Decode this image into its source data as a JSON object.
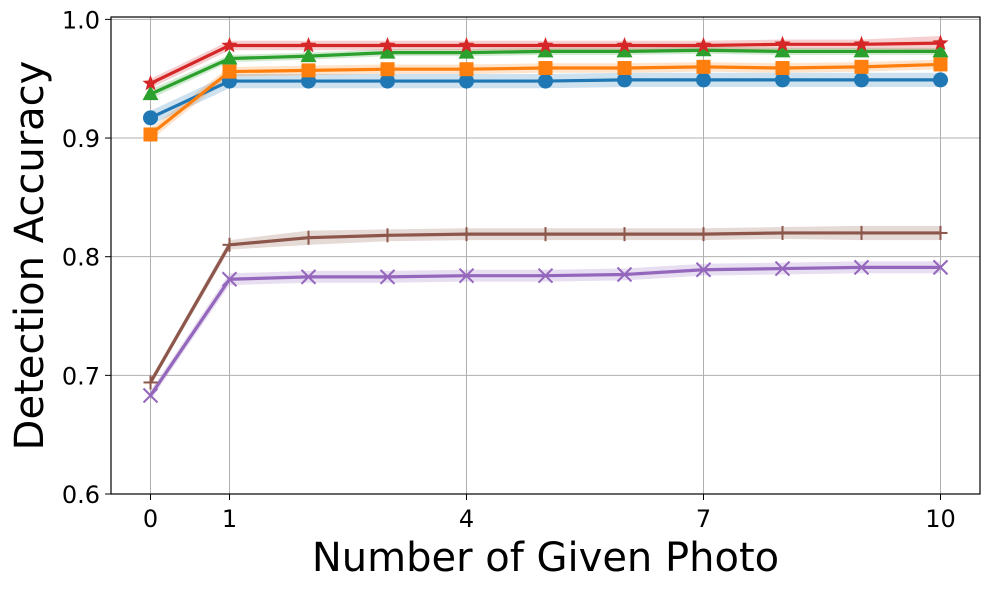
{
  "chart_data": {
    "type": "line",
    "title": "",
    "xlabel": "Number of Given Photo",
    "ylabel": "Detection Accuracy",
    "xlim": [
      -0.5,
      10.5
    ],
    "ylim": [
      0.6,
      1.002
    ],
    "xticks": [
      0,
      1,
      4,
      7,
      10
    ],
    "xtick_labels": [
      "0",
      "1",
      "4",
      "7",
      "10"
    ],
    "yticks": [
      0.6,
      0.7,
      0.8,
      0.9,
      1.0
    ],
    "ytick_labels": [
      "0.6",
      "0.7",
      "0.8",
      "0.9",
      "1.0"
    ],
    "grid": true,
    "x": [
      0,
      1,
      2,
      3,
      4,
      5,
      6,
      7,
      8,
      9,
      10
    ],
    "series": [
      {
        "color": "#1f77b4",
        "marker": "circle",
        "values": [
          0.917,
          0.948,
          0.948,
          0.948,
          0.948,
          0.948,
          0.949,
          0.949,
          0.949,
          0.949,
          0.949
        ],
        "band": [
          0.006,
          0.006,
          0.006,
          0.006,
          0.006,
          0.006,
          0.006,
          0.006,
          0.006,
          0.006,
          0.006
        ]
      },
      {
        "color": "#ff7f0e",
        "marker": "square",
        "values": [
          0.903,
          0.956,
          0.957,
          0.958,
          0.958,
          0.959,
          0.959,
          0.96,
          0.959,
          0.96,
          0.962
        ],
        "band": [
          0.005,
          0.004,
          0.004,
          0.004,
          0.004,
          0.004,
          0.004,
          0.004,
          0.004,
          0.004,
          0.004
        ]
      },
      {
        "color": "#2ca02c",
        "marker": "triangle",
        "values": [
          0.937,
          0.967,
          0.969,
          0.972,
          0.972,
          0.973,
          0.973,
          0.974,
          0.973,
          0.973,
          0.973
        ],
        "band": [
          0.004,
          0.003,
          0.003,
          0.003,
          0.003,
          0.003,
          0.003,
          0.003,
          0.003,
          0.003,
          0.003
        ]
      },
      {
        "color": "#d62728",
        "marker": "star",
        "values": [
          0.946,
          0.978,
          0.978,
          0.978,
          0.978,
          0.978,
          0.978,
          0.978,
          0.979,
          0.979,
          0.98
        ],
        "band": [
          0.004,
          0.004,
          0.004,
          0.004,
          0.004,
          0.004,
          0.004,
          0.004,
          0.004,
          0.004,
          0.006
        ]
      },
      {
        "color": "#9467bd",
        "marker": "x",
        "values": [
          0.683,
          0.781,
          0.783,
          0.783,
          0.784,
          0.784,
          0.785,
          0.789,
          0.79,
          0.791,
          0.791
        ],
        "band": [
          0.004,
          0.005,
          0.005,
          0.005,
          0.005,
          0.005,
          0.005,
          0.005,
          0.005,
          0.005,
          0.005
        ]
      },
      {
        "color": "#8c564b",
        "marker": "plus",
        "values": [
          0.694,
          0.81,
          0.816,
          0.818,
          0.819,
          0.819,
          0.819,
          0.819,
          0.82,
          0.82,
          0.82
        ],
        "band": [
          0.003,
          0.004,
          0.006,
          0.005,
          0.005,
          0.005,
          0.005,
          0.005,
          0.005,
          0.006,
          0.006
        ]
      }
    ]
  }
}
